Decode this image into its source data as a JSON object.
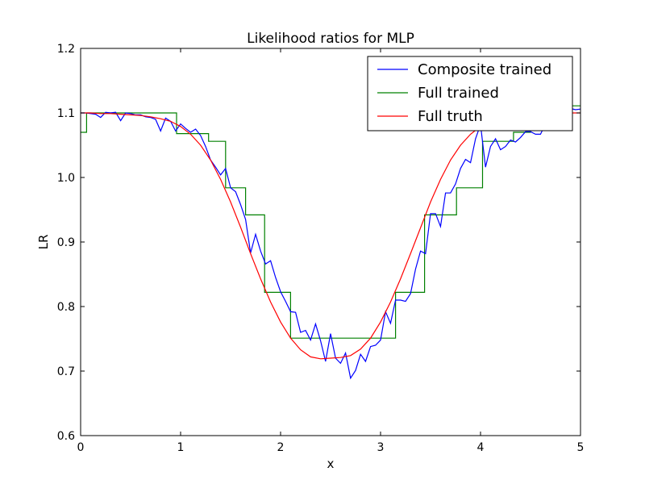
{
  "chart_data": {
    "type": "line",
    "title": "Likelihood ratios for MLP",
    "xlabel": "x",
    "ylabel": "LR",
    "xlim": [
      0,
      5
    ],
    "ylim": [
      0.6,
      1.2
    ],
    "xticks": [
      0,
      1,
      2,
      3,
      4,
      5
    ],
    "xtick_labels": [
      "0",
      "1",
      "2",
      "3",
      "4",
      "5"
    ],
    "yticks": [
      0.6,
      0.7,
      0.8,
      0.9,
      1.0,
      1.1,
      1.2
    ],
    "ytick_labels": [
      "0.6",
      "0.7",
      "0.8",
      "0.9",
      "1.0",
      "1.1",
      "1.2"
    ],
    "grid": false,
    "legend": {
      "position": "top-right"
    },
    "series": [
      {
        "name": "Composite trained",
        "color": "#0000ff",
        "x": [
          0,
          0.05,
          0.1,
          0.15,
          0.2,
          0.25,
          0.3,
          0.35,
          0.4,
          0.45,
          0.5,
          0.55,
          0.6,
          0.65,
          0.7,
          0.75,
          0.8,
          0.85,
          0.9,
          0.95,
          1.0,
          1.05,
          1.1,
          1.15,
          1.2,
          1.25,
          1.3,
          1.35,
          1.4,
          1.45,
          1.5,
          1.55,
          1.6,
          1.65,
          1.7,
          1.75,
          1.8,
          1.85,
          1.9,
          1.95,
          2.0,
          2.05,
          2.1,
          2.15,
          2.2,
          2.25,
          2.3,
          2.35,
          2.4,
          2.45,
          2.5,
          2.55,
          2.6,
          2.65,
          2.7,
          2.75,
          2.8,
          2.85,
          2.9,
          2.95,
          3.0,
          3.05,
          3.1,
          3.15,
          3.2,
          3.25,
          3.3,
          3.35,
          3.4,
          3.45,
          3.5,
          3.55,
          3.6,
          3.65,
          3.7,
          3.75,
          3.8,
          3.85,
          3.9,
          3.95,
          4.0,
          4.05,
          4.1,
          4.15,
          4.2,
          4.25,
          4.3,
          4.35,
          4.4,
          4.45,
          4.5,
          4.55,
          4.6,
          4.65,
          4.7,
          4.75,
          4.8,
          4.85,
          4.9,
          4.95,
          5.0
        ],
        "y": [
          1.1,
          1.1,
          1.099,
          1.098,
          1.093,
          1.101,
          1.1,
          1.101,
          1.088,
          1.1,
          1.099,
          1.097,
          1.097,
          1.094,
          1.093,
          1.09,
          1.072,
          1.092,
          1.087,
          1.072,
          1.083,
          1.076,
          1.07,
          1.075,
          1.065,
          1.048,
          1.027,
          1.016,
          1.004,
          1.014,
          0.984,
          0.978,
          0.958,
          0.935,
          0.883,
          0.912,
          0.886,
          0.866,
          0.871,
          0.845,
          0.823,
          0.808,
          0.792,
          0.791,
          0.76,
          0.763,
          0.748,
          0.773,
          0.747,
          0.715,
          0.758,
          0.72,
          0.712,
          0.728,
          0.689,
          0.701,
          0.726,
          0.715,
          0.738,
          0.74,
          0.748,
          0.792,
          0.774,
          0.81,
          0.81,
          0.808,
          0.82,
          0.858,
          0.886,
          0.882,
          0.944,
          0.944,
          0.924,
          0.976,
          0.976,
          0.99,
          1.014,
          1.028,
          1.023,
          1.06,
          1.082,
          1.016,
          1.048,
          1.06,
          1.043,
          1.048,
          1.058,
          1.055,
          1.062,
          1.071,
          1.071,
          1.067,
          1.067,
          1.083,
          1.087,
          1.093,
          1.099,
          1.103,
          1.107,
          1.105,
          1.106
        ]
      },
      {
        "name": "Full trained",
        "color": "#008000",
        "step_edges": [
          0.0,
          0.06,
          0.96,
          1.28,
          1.45,
          1.65,
          1.84,
          2.1,
          3.15,
          3.44,
          3.76,
          4.02,
          4.33,
          4.5,
          4.62,
          4.75,
          5.0
        ],
        "step_values": [
          1.07,
          1.1,
          1.068,
          1.056,
          0.984,
          0.942,
          0.822,
          0.751,
          0.822,
          0.942,
          0.984,
          1.056,
          1.07,
          1.08,
          1.09,
          1.111
        ]
      },
      {
        "name": "Full truth",
        "color": "#ff0000",
        "x": [
          0,
          0.1,
          0.2,
          0.3,
          0.4,
          0.5,
          0.6,
          0.7,
          0.8,
          0.9,
          1.0,
          1.1,
          1.2,
          1.3,
          1.4,
          1.5,
          1.6,
          1.7,
          1.8,
          1.9,
          2.0,
          2.1,
          2.2,
          2.3,
          2.4,
          2.5,
          2.6,
          2.7,
          2.8,
          2.9,
          3.0,
          3.1,
          3.2,
          3.3,
          3.4,
          3.5,
          3.6,
          3.7,
          3.8,
          3.9,
          4.0,
          4.1,
          4.2,
          4.3,
          4.4,
          4.5,
          4.6,
          4.7,
          4.8,
          4.9,
          5.0
        ],
        "y": [
          1.1,
          1.1,
          1.099,
          1.099,
          1.098,
          1.097,
          1.096,
          1.094,
          1.091,
          1.087,
          1.079,
          1.067,
          1.05,
          1.027,
          0.997,
          0.962,
          0.923,
          0.882,
          0.843,
          0.807,
          0.776,
          0.751,
          0.733,
          0.722,
          0.719,
          0.72,
          0.721,
          0.724,
          0.734,
          0.751,
          0.776,
          0.807,
          0.843,
          0.882,
          0.922,
          0.962,
          0.997,
          1.027,
          1.05,
          1.067,
          1.079,
          1.087,
          1.091,
          1.094,
          1.096,
          1.097,
          1.098,
          1.099,
          1.099,
          1.1,
          1.1
        ]
      }
    ]
  }
}
